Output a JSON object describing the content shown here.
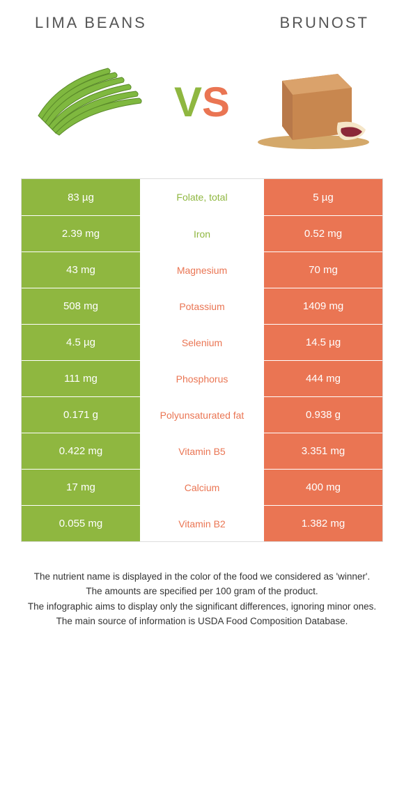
{
  "colors": {
    "green": "#8fb740",
    "orange": "#ea7553"
  },
  "left_title": "LIMA BEANS",
  "right_title": "BRUNOST",
  "vs": {
    "v": "V",
    "s": "S"
  },
  "rows": [
    {
      "left": "83 µg",
      "label": "Folate, total",
      "right": "5 µg",
      "winner": "left"
    },
    {
      "left": "2.39 mg",
      "label": "Iron",
      "right": "0.52 mg",
      "winner": "left"
    },
    {
      "left": "43 mg",
      "label": "Magnesium",
      "right": "70 mg",
      "winner": "right"
    },
    {
      "left": "508 mg",
      "label": "Potassium",
      "right": "1409 mg",
      "winner": "right"
    },
    {
      "left": "4.5 µg",
      "label": "Selenium",
      "right": "14.5 µg",
      "winner": "right"
    },
    {
      "left": "111 mg",
      "label": "Phosphorus",
      "right": "444 mg",
      "winner": "right"
    },
    {
      "left": "0.171 g",
      "label": "Polyunsaturated fat",
      "right": "0.938 g",
      "winner": "right"
    },
    {
      "left": "0.422 mg",
      "label": "Vitamin B5",
      "right": "3.351 mg",
      "winner": "right"
    },
    {
      "left": "17 mg",
      "label": "Calcium",
      "right": "400 mg",
      "winner": "right"
    },
    {
      "left": "0.055 mg",
      "label": "Vitamin B2",
      "right": "1.382 mg",
      "winner": "right"
    }
  ],
  "footer": [
    "The nutrient name is displayed in the color of the food we considered as 'winner'.",
    "The amounts are specified per 100 gram of the product.",
    "The infographic aims to display only the significant differences, ignoring minor ones.",
    "The main source of information is USDA Food Composition Database."
  ]
}
